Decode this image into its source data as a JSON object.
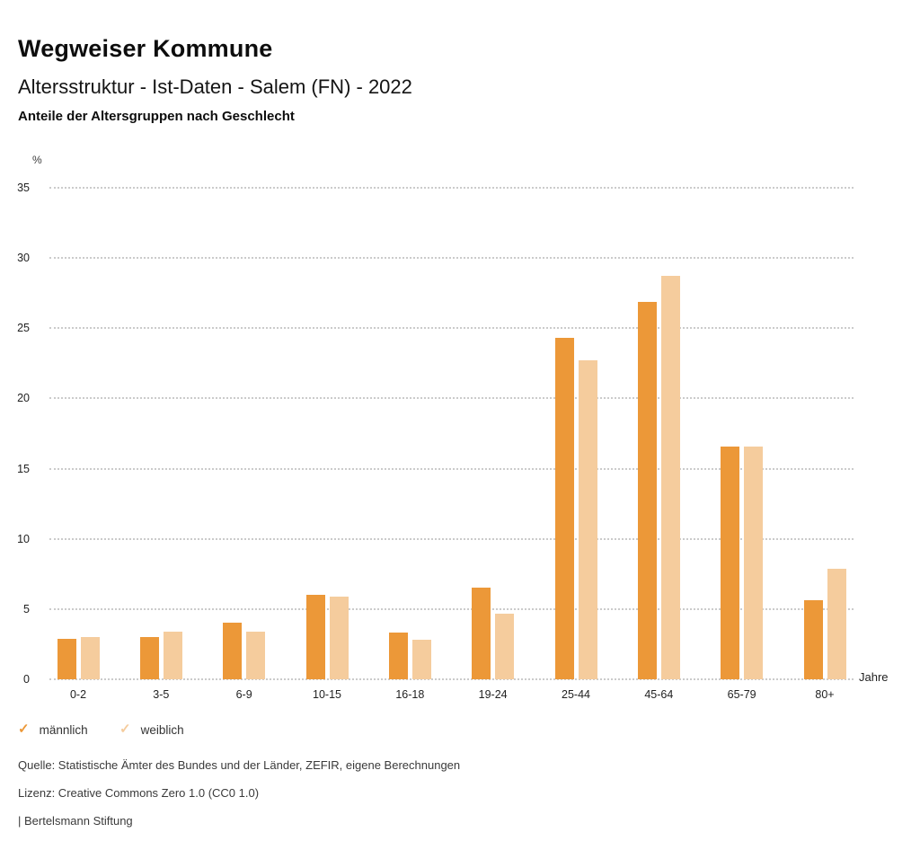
{
  "header": {
    "title": "Wegweiser Kommune",
    "subtitle": "Altersstruktur - Ist-Daten - Salem (FN) - 2022",
    "caption": "Anteile der Altersgruppen nach Geschlecht"
  },
  "chart_data": {
    "type": "bar",
    "categories": [
      "0-2",
      "3-5",
      "6-9",
      "10-15",
      "16-18",
      "19-24",
      "25-44",
      "45-64",
      "65-79",
      "80+"
    ],
    "series": [
      {
        "name": "männlich",
        "color": "#EC9838",
        "values": [
          2.9,
          3.0,
          4.0,
          6.0,
          3.3,
          6.5,
          24.3,
          26.9,
          16.6,
          5.6
        ]
      },
      {
        "name": "weiblich",
        "color": "#F5CC9D",
        "values": [
          3.0,
          3.4,
          3.4,
          5.9,
          2.8,
          4.7,
          22.7,
          28.7,
          16.6,
          7.9
        ]
      }
    ],
    "title": "Anteile der Altersgruppen nach Geschlecht",
    "xlabel": "Jahre",
    "ylabel": "%",
    "ylim": [
      0,
      35
    ],
    "ytick_step": 5,
    "grid": "horizontal-dotted",
    "legend_position": "bottom-left"
  },
  "legend": {
    "check_icon": "✓",
    "items": [
      {
        "label": "männlich",
        "color": "#EC9838"
      },
      {
        "label": "weiblich",
        "color": "#F5CC9D"
      }
    ]
  },
  "footer": {
    "source": "Quelle: Statistische Ämter des Bundes und der Länder, ZEFIR, eigene Berechnungen",
    "license": "Lizenz: Creative Commons Zero 1.0 (CC0 1.0)",
    "attribution": "| Bertelsmann Stiftung"
  }
}
